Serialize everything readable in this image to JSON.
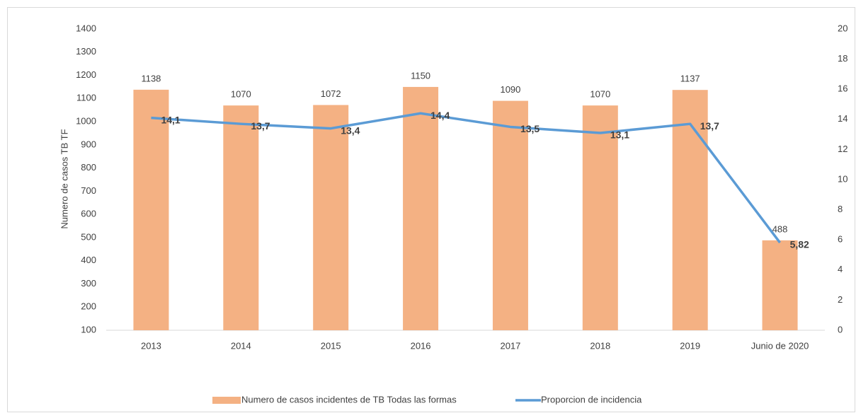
{
  "chart_data": {
    "type": "bar",
    "y_label": "Numero de casos TB TF",
    "categories": [
      "2013",
      "2014",
      "2015",
      "2016",
      "2017",
      "2018",
      "2019",
      "Junio de 2020"
    ],
    "series": [
      {
        "name": "Numero de casos incidentes de TB Todas las formas",
        "type": "bar",
        "color": "#f4b183",
        "values": [
          1138,
          1070,
          1072,
          1150,
          1090,
          1070,
          1137,
          488
        ]
      },
      {
        "name": "Proporcion de incidencia",
        "type": "line",
        "axis": "y2",
        "color": "#5b9bd5",
        "values": [
          14.1,
          13.7,
          13.4,
          14.4,
          13.5,
          13.1,
          13.7,
          5.82
        ],
        "value_labels": [
          "14,1",
          "13,7",
          "13,4",
          "14,4",
          "13,5",
          "13,1",
          "13,7",
          "5,82"
        ]
      }
    ],
    "ylim": [
      100,
      1400
    ],
    "yticks": [
      100,
      200,
      300,
      400,
      500,
      600,
      700,
      800,
      900,
      1000,
      1100,
      1200,
      1300,
      1400
    ],
    "y2lim": [
      0,
      20
    ],
    "y2ticks": [
      0,
      2,
      4,
      6,
      8,
      10,
      12,
      14,
      16,
      18,
      20
    ],
    "legend": "bottom"
  }
}
